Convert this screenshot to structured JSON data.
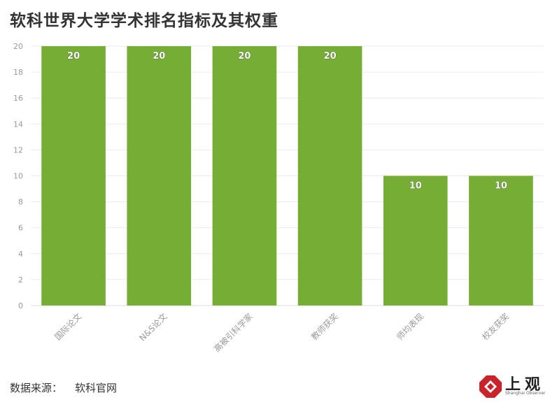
{
  "title": "软科世界大学学术排名指标及其权重",
  "source": {
    "label": "数据来源：",
    "value": "软科官网"
  },
  "logo": {
    "text": "上观",
    "subtitle": "Shanghai Observer"
  },
  "colors": {
    "bar": "#76ad35",
    "grid": "#ebebeb",
    "tick": "#999999",
    "logo_red": "#c9232c"
  },
  "chart_data": {
    "type": "bar",
    "categories": [
      "国际论文",
      "N&S论文",
      "高被引科学家",
      "教师获奖",
      "师均表现",
      "校友获奖"
    ],
    "values": [
      20,
      20,
      20,
      20,
      10,
      10
    ],
    "data_labels": [
      "20",
      "20",
      "20",
      "20",
      "10",
      "10"
    ],
    "y_ticks": [
      0,
      2,
      4,
      6,
      8,
      10,
      12,
      14,
      16,
      18,
      20
    ],
    "ylim": [
      0,
      20
    ],
    "grid": true,
    "xlabel": "",
    "ylabel": ""
  }
}
